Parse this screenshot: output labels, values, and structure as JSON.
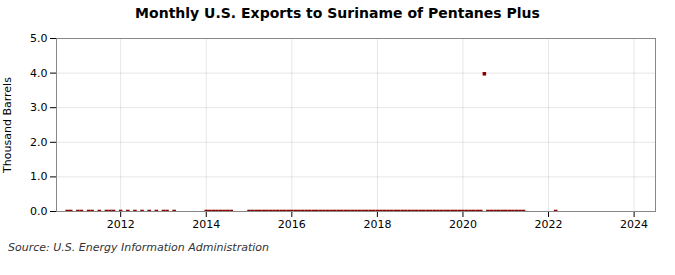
{
  "chart_data": {
    "type": "scatter",
    "title": "Monthly U.S. Exports to Suriname of Pentanes Plus",
    "y_label": "Thousand Barrels",
    "annotations": [
      "Source: U.S. Energy Information Administration"
    ],
    "color": "#8b0000",
    "marker": "square",
    "grid": true,
    "xlim": [
      2010.5,
      2024.5
    ],
    "xticks": [
      2012,
      2014,
      2016,
      2018,
      2020,
      2022,
      2024
    ],
    "ylim": [
      0,
      5.0
    ],
    "yticks": [
      {
        "value": 0.0,
        "label": "0.0"
      },
      {
        "value": 1.0,
        "label": "1.0"
      },
      {
        "value": 2.0,
        "label": "2.0"
      },
      {
        "value": 3.0,
        "label": "3.0"
      },
      {
        "value": 4.0,
        "label": "4.0"
      },
      {
        "value": 5.0,
        "label": "5.0"
      }
    ],
    "x": [
      2010.75,
      2010.8333333333333,
      2011,
      2011.0833333333333,
      2011.25,
      2011.3333333333333,
      2011.5,
      2011.6666666666667,
      2011.75,
      2011.8333333333333,
      2012,
      2012.1666666666667,
      2012.3333333333333,
      2012.5,
      2012.6666666666667,
      2012.8333333333333,
      2013,
      2013.0833333333333,
      2013.25,
      2014,
      2014.0833333333333,
      2014.1666666666667,
      2014.25,
      2014.3333333333333,
      2014.4166666666667,
      2014.5,
      2014.5833333333333,
      2015,
      2015.0833333333333,
      2015.1666666666667,
      2015.25,
      2015.3333333333333,
      2015.4166666666667,
      2015.5,
      2015.5833333333333,
      2015.6666666666667,
      2015.75,
      2015.8333333333333,
      2015.9166666666667,
      2016,
      2016.0833333333333,
      2016.1666666666667,
      2016.25,
      2016.3333333333333,
      2016.4166666666667,
      2016.5,
      2016.5833333333333,
      2016.6666666666667,
      2016.75,
      2016.8333333333333,
      2016.9166666666667,
      2017,
      2017.0833333333333,
      2017.1666666666667,
      2017.25,
      2017.3333333333333,
      2017.4166666666667,
      2017.5,
      2017.5833333333333,
      2017.6666666666667,
      2017.75,
      2017.8333333333333,
      2017.9166666666667,
      2018,
      2018.0833333333333,
      2018.1666666666667,
      2018.25,
      2018.3333333333333,
      2018.4166666666667,
      2018.5,
      2018.5833333333333,
      2018.6666666666667,
      2018.75,
      2018.8333333333333,
      2018.9166666666667,
      2019,
      2019.0833333333333,
      2019.1666666666667,
      2019.25,
      2019.3333333333333,
      2019.4166666666667,
      2019.5,
      2019.5833333333333,
      2019.6666666666667,
      2019.75,
      2019.8333333333333,
      2019.9166666666667,
      2020,
      2020.0833333333333,
      2020.1666666666667,
      2020.25,
      2020.3333333333333,
      2020.4166666666667,
      2020.5,
      2020.5833333333333,
      2020.6666666666667,
      2020.75,
      2020.8333333333333,
      2020.9166666666667,
      2021,
      2021.0833333333333,
      2021.1666666666667,
      2021.25,
      2021.3333333333333,
      2021.4166666666667,
      2022.1666666666667
    ],
    "values": [
      0,
      0,
      0,
      0,
      0,
      0,
      0,
      0,
      0,
      0,
      0,
      0,
      0,
      0,
      0,
      0,
      0,
      0,
      0,
      0,
      0,
      0,
      0,
      0,
      0,
      0,
      0,
      0,
      0,
      0,
      0,
      0,
      0,
      0,
      0,
      0,
      0,
      0,
      0,
      0,
      0,
      0,
      0,
      0,
      0,
      0,
      0,
      0,
      0,
      0,
      0,
      0,
      0,
      0,
      0,
      0,
      0,
      0,
      0,
      0,
      0,
      0,
      0,
      0,
      0,
      0,
      0,
      0,
      0,
      0,
      0,
      0,
      0,
      0,
      0,
      0,
      0,
      0,
      0,
      0,
      0,
      0,
      0,
      0,
      0,
      0,
      0,
      0,
      0,
      0,
      0,
      0,
      0,
      3.98,
      0,
      0,
      0,
      0,
      0,
      0,
      0,
      0,
      0,
      0,
      0,
      0
    ]
  }
}
